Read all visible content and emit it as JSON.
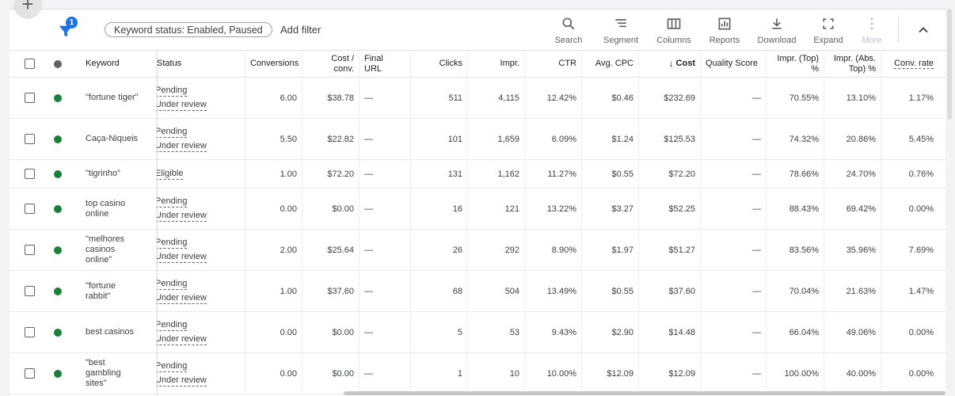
{
  "toolbar": {
    "filter_count": "1",
    "chip_label": "Keyword status: Enabled, Paused",
    "add_filter": "Add filter",
    "search": "Search",
    "segment": "Segment",
    "columns": "Columns",
    "reports": "Reports",
    "download": "Download",
    "expand": "Expand",
    "more": "More"
  },
  "fab_label": "+",
  "columns": {
    "keyword": "Keyword",
    "status": "Status",
    "conversions": "Conversions",
    "cost_conv_1": "Cost /",
    "cost_conv_2": "conv.",
    "final_url_1": "Final",
    "final_url_2": "URL",
    "clicks": "Clicks",
    "impr": "Impr.",
    "ctr": "CTR",
    "avg_cpc": "Avg. CPC",
    "cost_arrow": "↓",
    "cost": "Cost",
    "quality_score": "Quality Score",
    "impr_top_1": "Impr. (Top)",
    "impr_top_2": "%",
    "impr_abs_1": "Impr. (Abs.",
    "impr_abs_2": "Top) %",
    "conv_rate": "Conv. rate"
  },
  "rows": [
    {
      "kw": [
        "\"fortune tiger\""
      ],
      "status": [
        "Pending",
        "Under review"
      ],
      "conversions": "6.00",
      "cost_conv": "$38.78",
      "final_url": "—",
      "clicks": "511",
      "impr": "4,115",
      "ctr": "12.42%",
      "avg_cpc": "$0.46",
      "cost": "$232.69",
      "qs": "—",
      "impr_top": "70.55%",
      "impr_abs": "13.10%",
      "conv_rate": "1.17%"
    },
    {
      "kw": [
        "Caça-Niqueis"
      ],
      "status": [
        "Pending",
        "Under review"
      ],
      "conversions": "5.50",
      "cost_conv": "$22.82",
      "final_url": "—",
      "clicks": "101",
      "impr": "1,659",
      "ctr": "6.09%",
      "avg_cpc": "$1.24",
      "cost": "$125.53",
      "qs": "—",
      "impr_top": "74.32%",
      "impr_abs": "20.86%",
      "conv_rate": "5.45%"
    },
    {
      "kw": [
        "\"tigrinho\""
      ],
      "status": [
        "Eligible"
      ],
      "conversions": "1.00",
      "cost_conv": "$72.20",
      "final_url": "—",
      "clicks": "131",
      "impr": "1,162",
      "ctr": "11.27%",
      "avg_cpc": "$0.55",
      "cost": "$72.20",
      "qs": "—",
      "impr_top": "78.66%",
      "impr_abs": "24.70%",
      "conv_rate": "0.76%"
    },
    {
      "kw": [
        "top casino",
        "online"
      ],
      "status": [
        "Pending",
        "Under review"
      ],
      "conversions": "0.00",
      "cost_conv": "$0.00",
      "final_url": "—",
      "clicks": "16",
      "impr": "121",
      "ctr": "13.22%",
      "avg_cpc": "$3.27",
      "cost": "$52.25",
      "qs": "—",
      "impr_top": "88.43%",
      "impr_abs": "69.42%",
      "conv_rate": "0.00%"
    },
    {
      "kw": [
        "\"melhores",
        "casinos",
        "online\""
      ],
      "status": [
        "Pending",
        "Under review"
      ],
      "conversions": "2.00",
      "cost_conv": "$25.64",
      "final_url": "—",
      "clicks": "26",
      "impr": "292",
      "ctr": "8.90%",
      "avg_cpc": "$1.97",
      "cost": "$51.27",
      "qs": "—",
      "impr_top": "83.56%",
      "impr_abs": "35.96%",
      "conv_rate": "7.69%"
    },
    {
      "kw": [
        "\"fortune",
        "rabbit\""
      ],
      "status": [
        "Pending",
        "Under review"
      ],
      "conversions": "1.00",
      "cost_conv": "$37.60",
      "final_url": "—",
      "clicks": "68",
      "impr": "504",
      "ctr": "13.49%",
      "avg_cpc": "$0.55",
      "cost": "$37.60",
      "qs": "—",
      "impr_top": "70.04%",
      "impr_abs": "21.63%",
      "conv_rate": "1.47%"
    },
    {
      "kw": [
        "best casinos"
      ],
      "status": [
        "Pending",
        "Under review"
      ],
      "conversions": "0.00",
      "cost_conv": "$0.00",
      "final_url": "—",
      "clicks": "5",
      "impr": "53",
      "ctr": "9.43%",
      "avg_cpc": "$2.90",
      "cost": "$14.48",
      "qs": "—",
      "impr_top": "66.04%",
      "impr_abs": "49.06%",
      "conv_rate": "0.00%"
    },
    {
      "kw": [
        "\"best",
        "gambling",
        "sites\""
      ],
      "status": [
        "Pending",
        "Under review"
      ],
      "conversions": "0.00",
      "cost_conv": "$0.00",
      "final_url": "—",
      "clicks": "1",
      "impr": "10",
      "ctr": "10.00%",
      "avg_cpc": "$12.09",
      "cost": "$12.09",
      "qs": "—",
      "impr_top": "100.00%",
      "impr_abs": "40.00%",
      "conv_rate": "0.00%"
    }
  ]
}
